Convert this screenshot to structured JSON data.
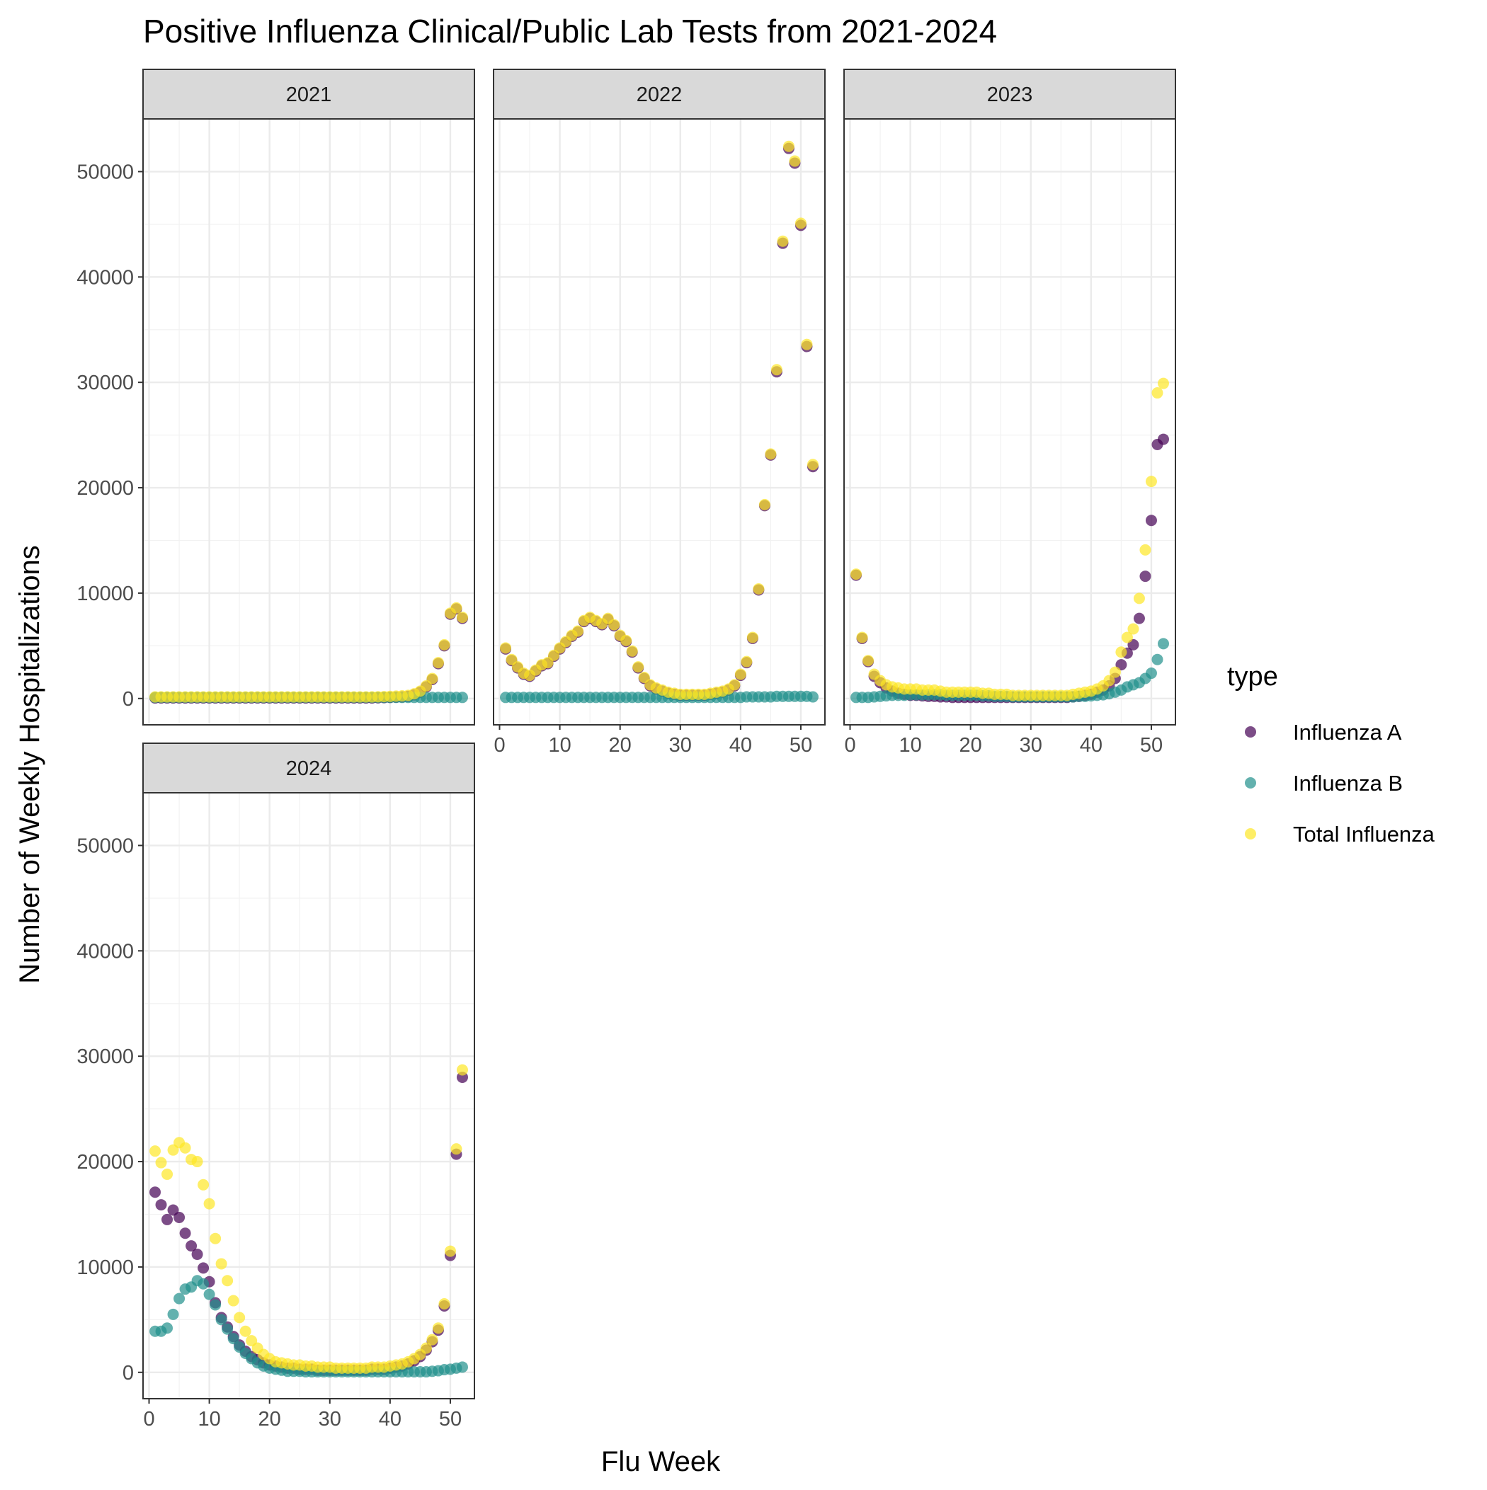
{
  "chart_data": {
    "type": "scatter",
    "title": "Positive Influenza Clinical/Public Lab Tests from 2021-2024",
    "xlabel": "Flu Week",
    "ylabel": "Number of Weekly Hospitalizations",
    "xlim": [
      -1,
      54
    ],
    "ylim": [
      -2500,
      55000
    ],
    "x_ticks": [
      0,
      10,
      20,
      30,
      40,
      50
    ],
    "y_ticks": [
      0,
      10000,
      20000,
      30000,
      40000,
      50000
    ],
    "x_tick_labels": [
      "0",
      "10",
      "20",
      "30",
      "40",
      "50"
    ],
    "y_tick_labels": [
      "0",
      "10000",
      "20000",
      "30000",
      "40000",
      "50000"
    ],
    "grid": true,
    "legend": {
      "title": "type",
      "position": "right",
      "items": [
        {
          "label": "Influenza A",
          "color": "#440154"
        },
        {
          "label": "Influenza B",
          "color": "#21908c"
        },
        {
          "label": "Total Influenza",
          "color": "#fde725"
        }
      ]
    },
    "panels": [
      {
        "strip": "2021",
        "series": [
          {
            "name": "Influenza A",
            "y": [
              50,
              50,
              50,
              50,
              50,
              50,
              50,
              50,
              50,
              50,
              50,
              50,
              50,
              50,
              50,
              50,
              50,
              50,
              50,
              50,
              50,
              50,
              50,
              50,
              50,
              50,
              50,
              50,
              50,
              50,
              50,
              50,
              50,
              50,
              50,
              50,
              50,
              60,
              80,
              100,
              130,
              150,
              200,
              350,
              600,
              1100,
              1800,
              3300,
              5000,
              8000,
              8500,
              7600
            ]
          },
          {
            "name": "Influenza B",
            "y": [
              100,
              100,
              100,
              100,
              100,
              100,
              100,
              100,
              100,
              100,
              100,
              100,
              100,
              100,
              100,
              100,
              100,
              100,
              100,
              100,
              100,
              100,
              100,
              100,
              100,
              100,
              100,
              100,
              100,
              100,
              100,
              100,
              100,
              100,
              100,
              100,
              100,
              100,
              100,
              100,
              100,
              100,
              100,
              100,
              100,
              100,
              100,
              100,
              100,
              100,
              100,
              100
            ]
          },
          {
            "name": "Total Influenza",
            "y": [
              150,
              150,
              150,
              150,
              150,
              150,
              150,
              150,
              150,
              150,
              150,
              150,
              150,
              150,
              150,
              150,
              150,
              150,
              150,
              150,
              150,
              150,
              150,
              150,
              150,
              150,
              150,
              150,
              150,
              150,
              150,
              150,
              150,
              150,
              150,
              150,
              150,
              160,
              180,
              200,
              230,
              250,
              300,
              450,
              700,
              1200,
              1900,
              3400,
              5100,
              8100,
              8600,
              7700
            ]
          }
        ]
      },
      {
        "strip": "2022",
        "series": [
          {
            "name": "Influenza A",
            "y": [
              4700,
              3600,
              2900,
              2300,
              2100,
              2600,
              3100,
              3300,
              4000,
              4700,
              5300,
              5900,
              6300,
              7300,
              7600,
              7300,
              7000,
              7500,
              6900,
              5900,
              5400,
              4400,
              2900,
              1900,
              1200,
              900,
              700,
              500,
              400,
              300,
              300,
              300,
              300,
              300,
              400,
              500,
              600,
              800,
              1200,
              2200,
              3400,
              5700,
              10300,
              18300,
              23100,
              31000,
              43200,
              52200,
              50800,
              44900,
              33400,
              22000
            ]
          },
          {
            "name": "Influenza B",
            "y": [
              100,
              100,
              100,
              100,
              100,
              100,
              100,
              100,
              100,
              100,
              100,
              100,
              100,
              100,
              100,
              100,
              100,
              100,
              100,
              100,
              100,
              100,
              100,
              100,
              100,
              100,
              100,
              100,
              100,
              100,
              100,
              100,
              100,
              100,
              100,
              100,
              100,
              100,
              100,
              100,
              150,
              150,
              150,
              150,
              150,
              200,
              200,
              200,
              200,
              200,
              200,
              150
            ]
          },
          {
            "name": "Total Influenza",
            "y": [
              4800,
              3700,
              3000,
              2400,
              2200,
              2700,
              3200,
              3400,
              4100,
              4800,
              5400,
              6000,
              6400,
              7400,
              7700,
              7400,
              7100,
              7600,
              7000,
              6000,
              5500,
              4500,
              3000,
              2000,
              1300,
              1000,
              800,
              600,
              500,
              400,
              400,
              400,
              400,
              400,
              500,
              600,
              700,
              900,
              1300,
              2300,
              3500,
              5800,
              10400,
              18400,
              23200,
              31200,
              43400,
              52400,
              51000,
              45100,
              33600,
              22200
            ]
          }
        ]
      },
      {
        "strip": "2023",
        "series": [
          {
            "name": "Influenza A",
            "y": [
              11700,
              5700,
              3500,
              2100,
              1500,
              1000,
              700,
              500,
              400,
              300,
              300,
              250,
              200,
              200,
              150,
              150,
              100,
              100,
              100,
              100,
              100,
              100,
              100,
              100,
              100,
              100,
              100,
              100,
              100,
              100,
              100,
              100,
              100,
              100,
              100,
              100,
              150,
              200,
              300,
              400,
              600,
              800,
              1200,
              1900,
              3200,
              4300,
              5100,
              7600,
              11600,
              16900,
              24100,
              24600
            ]
          },
          {
            "name": "Influenza B",
            "y": [
              100,
              100,
              100,
              150,
              200,
              250,
              300,
              300,
              300,
              350,
              350,
              350,
              350,
              350,
              350,
              300,
              300,
              300,
              300,
              300,
              300,
              250,
              250,
              200,
              200,
              200,
              150,
              150,
              150,
              150,
              150,
              150,
              150,
              150,
              150,
              150,
              150,
              200,
              200,
              250,
              300,
              350,
              450,
              600,
              800,
              1100,
              1300,
              1500,
              1900,
              2400,
              3700,
              5200
            ]
          },
          {
            "name": "Total Influenza",
            "y": [
              11800,
              5800,
              3600,
              2300,
              1700,
              1300,
              1100,
              1000,
              900,
              900,
              900,
              800,
              800,
              800,
              700,
              600,
              600,
              600,
              600,
              600,
              600,
              500,
              500,
              400,
              400,
              400,
              300,
              300,
              300,
              300,
              300,
              300,
              300,
              300,
              300,
              300,
              400,
              500,
              600,
              700,
              900,
              1200,
              1700,
              2500,
              4400,
              5800,
              6600,
              9500,
              14100,
              20600,
              29000,
              29900
            ]
          }
        ]
      },
      {
        "strip": "2024",
        "series": [
          {
            "name": "Influenza A",
            "y": [
              17100,
              15900,
              14500,
              15400,
              14700,
              13200,
              12000,
              11200,
              9900,
              8600,
              6600,
              5200,
              4300,
              3400,
              2600,
              2000,
              1500,
              1200,
              900,
              700,
              600,
              500,
              400,
              400,
              300,
              300,
              300,
              200,
              200,
              200,
              200,
              200,
              200,
              200,
              200,
              200,
              300,
              300,
              300,
              400,
              500,
              600,
              800,
              1100,
              1500,
              2100,
              2900,
              4000,
              6300,
              11100,
              20700,
              28000
            ]
          },
          {
            "name": "Influenza B",
            "y": [
              3900,
              3900,
              4200,
              5500,
              7000,
              7900,
              8100,
              8700,
              8400,
              7400,
              6400,
              5000,
              4100,
              3200,
              2400,
              1800,
              1300,
              900,
              600,
              400,
              300,
              200,
              100,
              100,
              100,
              50,
              50,
              50,
              50,
              50,
              50,
              50,
              50,
              50,
              50,
              50,
              50,
              50,
              50,
              50,
              50,
              50,
              50,
              50,
              50,
              50,
              100,
              150,
              250,
              300,
              400,
              500
            ]
          },
          {
            "name": "Total Influenza",
            "y": [
              21000,
              19900,
              18800,
              21100,
              21800,
              21300,
              20200,
              20000,
              17800,
              16000,
              12700,
              10300,
              8700,
              6800,
              5200,
              3900,
              3000,
              2300,
              1700,
              1300,
              1000,
              900,
              800,
              700,
              700,
              600,
              600,
              500,
              500,
              500,
              400,
              400,
              400,
              400,
              400,
              400,
              500,
              500,
              500,
              600,
              700,
              800,
              1000,
              1300,
              1700,
              2300,
              3100,
              4200,
              6500,
              11500,
              21200,
              28700
            ]
          }
        ]
      }
    ]
  }
}
